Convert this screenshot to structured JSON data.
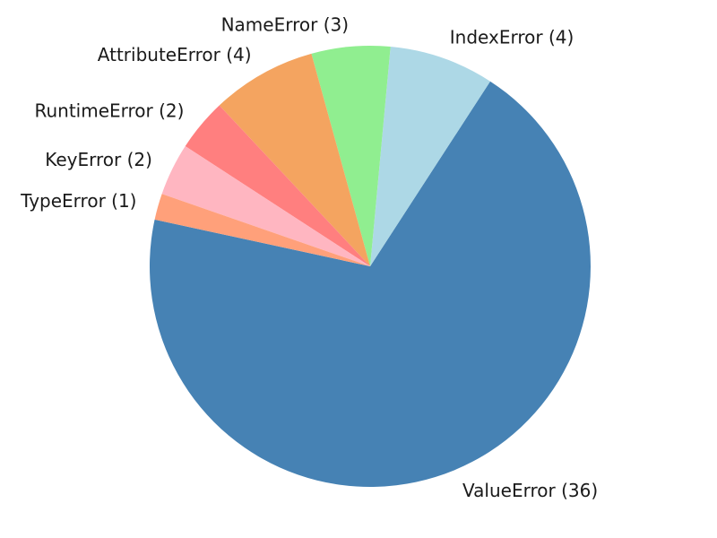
{
  "chart_data": {
    "type": "pie",
    "title": "",
    "slices": [
      {
        "category": "ValueError",
        "value": 36,
        "label": "ValueError (36)",
        "color": "#4682B4"
      },
      {
        "category": "IndexError",
        "value": 4,
        "label": "IndexError (4)",
        "color": "#ADD8E6"
      },
      {
        "category": "NameError",
        "value": 3,
        "label": "NameError (3)",
        "color": "#90EE90"
      },
      {
        "category": "AttributeError",
        "value": 4,
        "label": "AttributeError (4)",
        "color": "#F4A460"
      },
      {
        "category": "RuntimeError",
        "value": 2,
        "label": "RuntimeError (2)",
        "color": "#FF7F7F"
      },
      {
        "category": "KeyError",
        "value": 2,
        "label": "KeyError (2)",
        "color": "#FFB6C1"
      },
      {
        "category": "TypeError",
        "value": 1,
        "label": "TypeError (1)",
        "color": "#FFA07A"
      }
    ]
  }
}
